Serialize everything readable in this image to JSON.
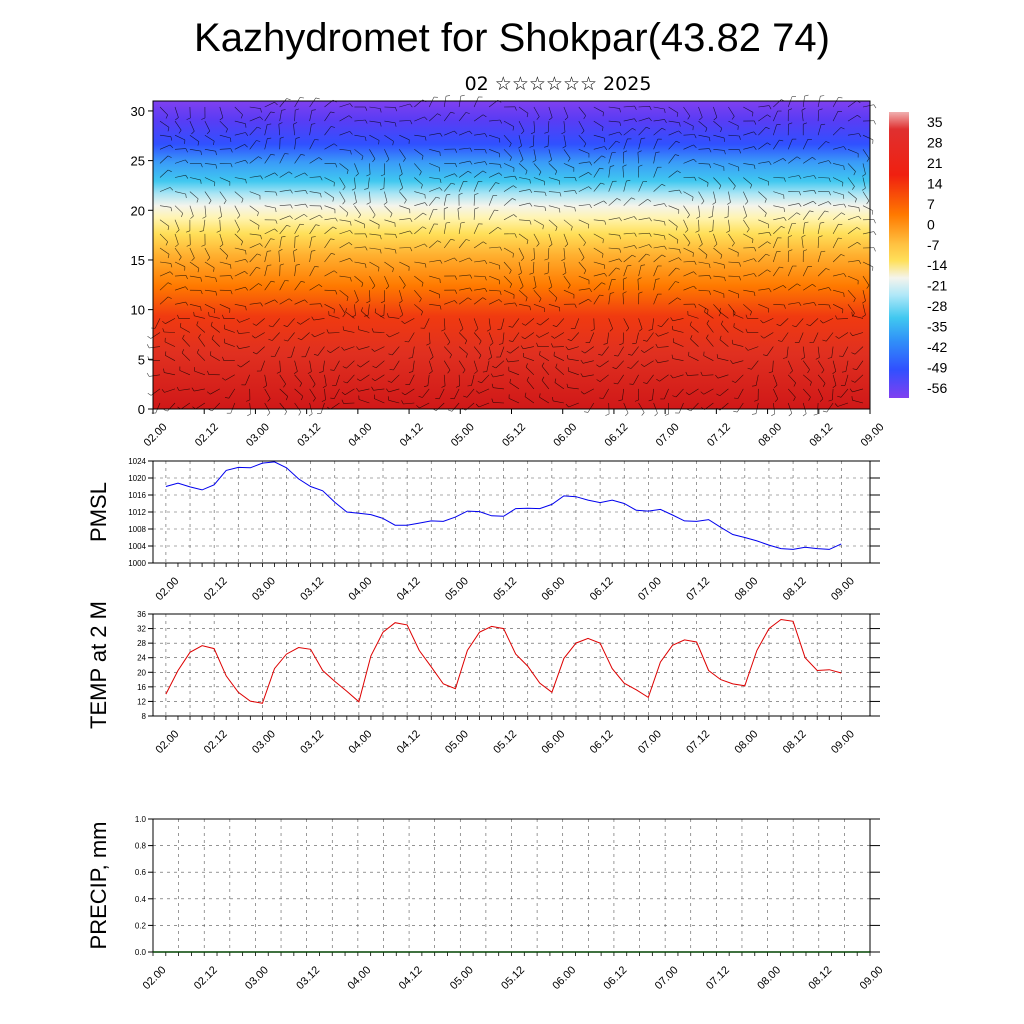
{
  "page": {
    "title": "Kazhydromet for Shokpar(43.82 74)",
    "subtitle": "02 ☆☆☆☆☆☆ 2025"
  },
  "chart_data": [
    {
      "type": "heatmap",
      "title": "",
      "y_ticks": [
        "0",
        "5",
        "10",
        "15",
        "20",
        "25",
        "30"
      ],
      "x_ticks": [
        "02.00",
        "02.12",
        "03.00",
        "03.12",
        "04.00",
        "04.12",
        "05.00",
        "05.12",
        "06.00",
        "06.12",
        "07.00",
        "07.12",
        "08.00",
        "08.12",
        "09.00"
      ],
      "ylim": [
        0,
        31
      ],
      "colorbar_labels": [
        "35",
        "28",
        "21",
        "14",
        "7",
        "0",
        "-7",
        "-14",
        "-21",
        "-28",
        "-35",
        "-42",
        "-49",
        "-56"
      ],
      "colors": {
        "bottom": "#e03020",
        "mid_warm": "#ff7a00",
        "yellow": "#ffe05a",
        "white": "#f4f4ec",
        "cyan": "#40c8f0",
        "blue": "#3050ff",
        "violet": "#8040f0"
      },
      "overlay": "wind barbs"
    },
    {
      "type": "line",
      "ylabel": "PMSL",
      "ylim": [
        1000,
        1024
      ],
      "y_ticks": [
        "1000",
        "1004",
        "1008",
        "1012",
        "1016",
        "1020",
        "1024"
      ],
      "x_ticks": [
        "02.00",
        "02.12",
        "03.00",
        "03.12",
        "04.00",
        "04.12",
        "05.00",
        "05.12",
        "06.00",
        "06.12",
        "07.00",
        "07.12",
        "08.00",
        "08.12",
        "09.00"
      ],
      "line_color": "#0000ee",
      "values": [
        1018.0,
        1018.8,
        1017.9,
        1017.2,
        1018.4,
        1021.8,
        1022.5,
        1022.4,
        1023.5,
        1023.8,
        1022.4,
        1019.8,
        1018.0,
        1017.0,
        1014.3,
        1012.0,
        1011.7,
        1011.4,
        1010.5,
        1008.9,
        1008.9,
        1009.4,
        1009.9,
        1009.8,
        1010.8,
        1012.2,
        1012.1,
        1011.1,
        1011.0,
        1012.8,
        1012.9,
        1012.8,
        1013.8,
        1015.8,
        1015.6,
        1014.8,
        1014.2,
        1014.8,
        1014.0,
        1012.4,
        1012.2,
        1012.6,
        1011.3,
        1009.9,
        1009.8,
        1010.2,
        1008.4,
        1006.7,
        1006.0,
        1005.2,
        1004.2,
        1003.4,
        1003.2,
        1003.7,
        1003.4,
        1003.2,
        1004.5
      ]
    },
    {
      "type": "line",
      "ylabel": "TEMP at 2 M",
      "ylim": [
        8,
        36
      ],
      "y_ticks": [
        "8",
        "12",
        "16",
        "20",
        "24",
        "28",
        "32",
        "36"
      ],
      "x_ticks": [
        "02.00",
        "02.12",
        "03.00",
        "03.12",
        "04.00",
        "04.12",
        "05.00",
        "05.12",
        "06.00",
        "06.12",
        "07.00",
        "07.12",
        "08.00",
        "08.12",
        "09.00"
      ],
      "line_color": "#dd0000",
      "values": [
        14.0,
        20.5,
        25.5,
        27.3,
        26.5,
        19.0,
        14.5,
        12.1,
        11.5,
        21.0,
        25.0,
        26.8,
        26.3,
        20.5,
        17.5,
        14.8,
        11.9,
        24.5,
        31.0,
        33.6,
        33.0,
        26.0,
        21.5,
        16.8,
        15.5,
        26.0,
        31.0,
        32.6,
        32.0,
        25.0,
        21.7,
        17.0,
        14.5,
        23.8,
        28.0,
        29.3,
        28.0,
        21.0,
        17.0,
        15.2,
        13.1,
        22.8,
        27.4,
        28.9,
        28.3,
        20.5,
        18.0,
        16.8,
        16.3,
        26.0,
        32.0,
        34.5,
        34.0,
        24.0,
        20.5,
        20.7,
        19.8
      ]
    },
    {
      "type": "line",
      "ylabel": "PRECIP, mm",
      "ylim": [
        0,
        1
      ],
      "y_ticks": [
        "0.0",
        "0.2",
        "0.4",
        "0.6",
        "0.8",
        "1.0"
      ],
      "x_ticks": [
        "02.00",
        "02.12",
        "03.00",
        "03.12",
        "04.00",
        "04.12",
        "05.00",
        "05.12",
        "06.00",
        "06.12",
        "07.00",
        "07.12",
        "08.00",
        "08.12",
        "09.00"
      ],
      "line_color": "#004400",
      "values": [
        0,
        0,
        0,
        0,
        0,
        0,
        0,
        0,
        0,
        0,
        0,
        0,
        0,
        0,
        0,
        0,
        0,
        0,
        0,
        0,
        0,
        0,
        0,
        0,
        0,
        0,
        0,
        0,
        0,
        0,
        0,
        0,
        0,
        0,
        0,
        0,
        0,
        0,
        0,
        0,
        0,
        0,
        0,
        0,
        0,
        0,
        0,
        0,
        0,
        0,
        0,
        0,
        0,
        0,
        0,
        0,
        0
      ]
    }
  ]
}
